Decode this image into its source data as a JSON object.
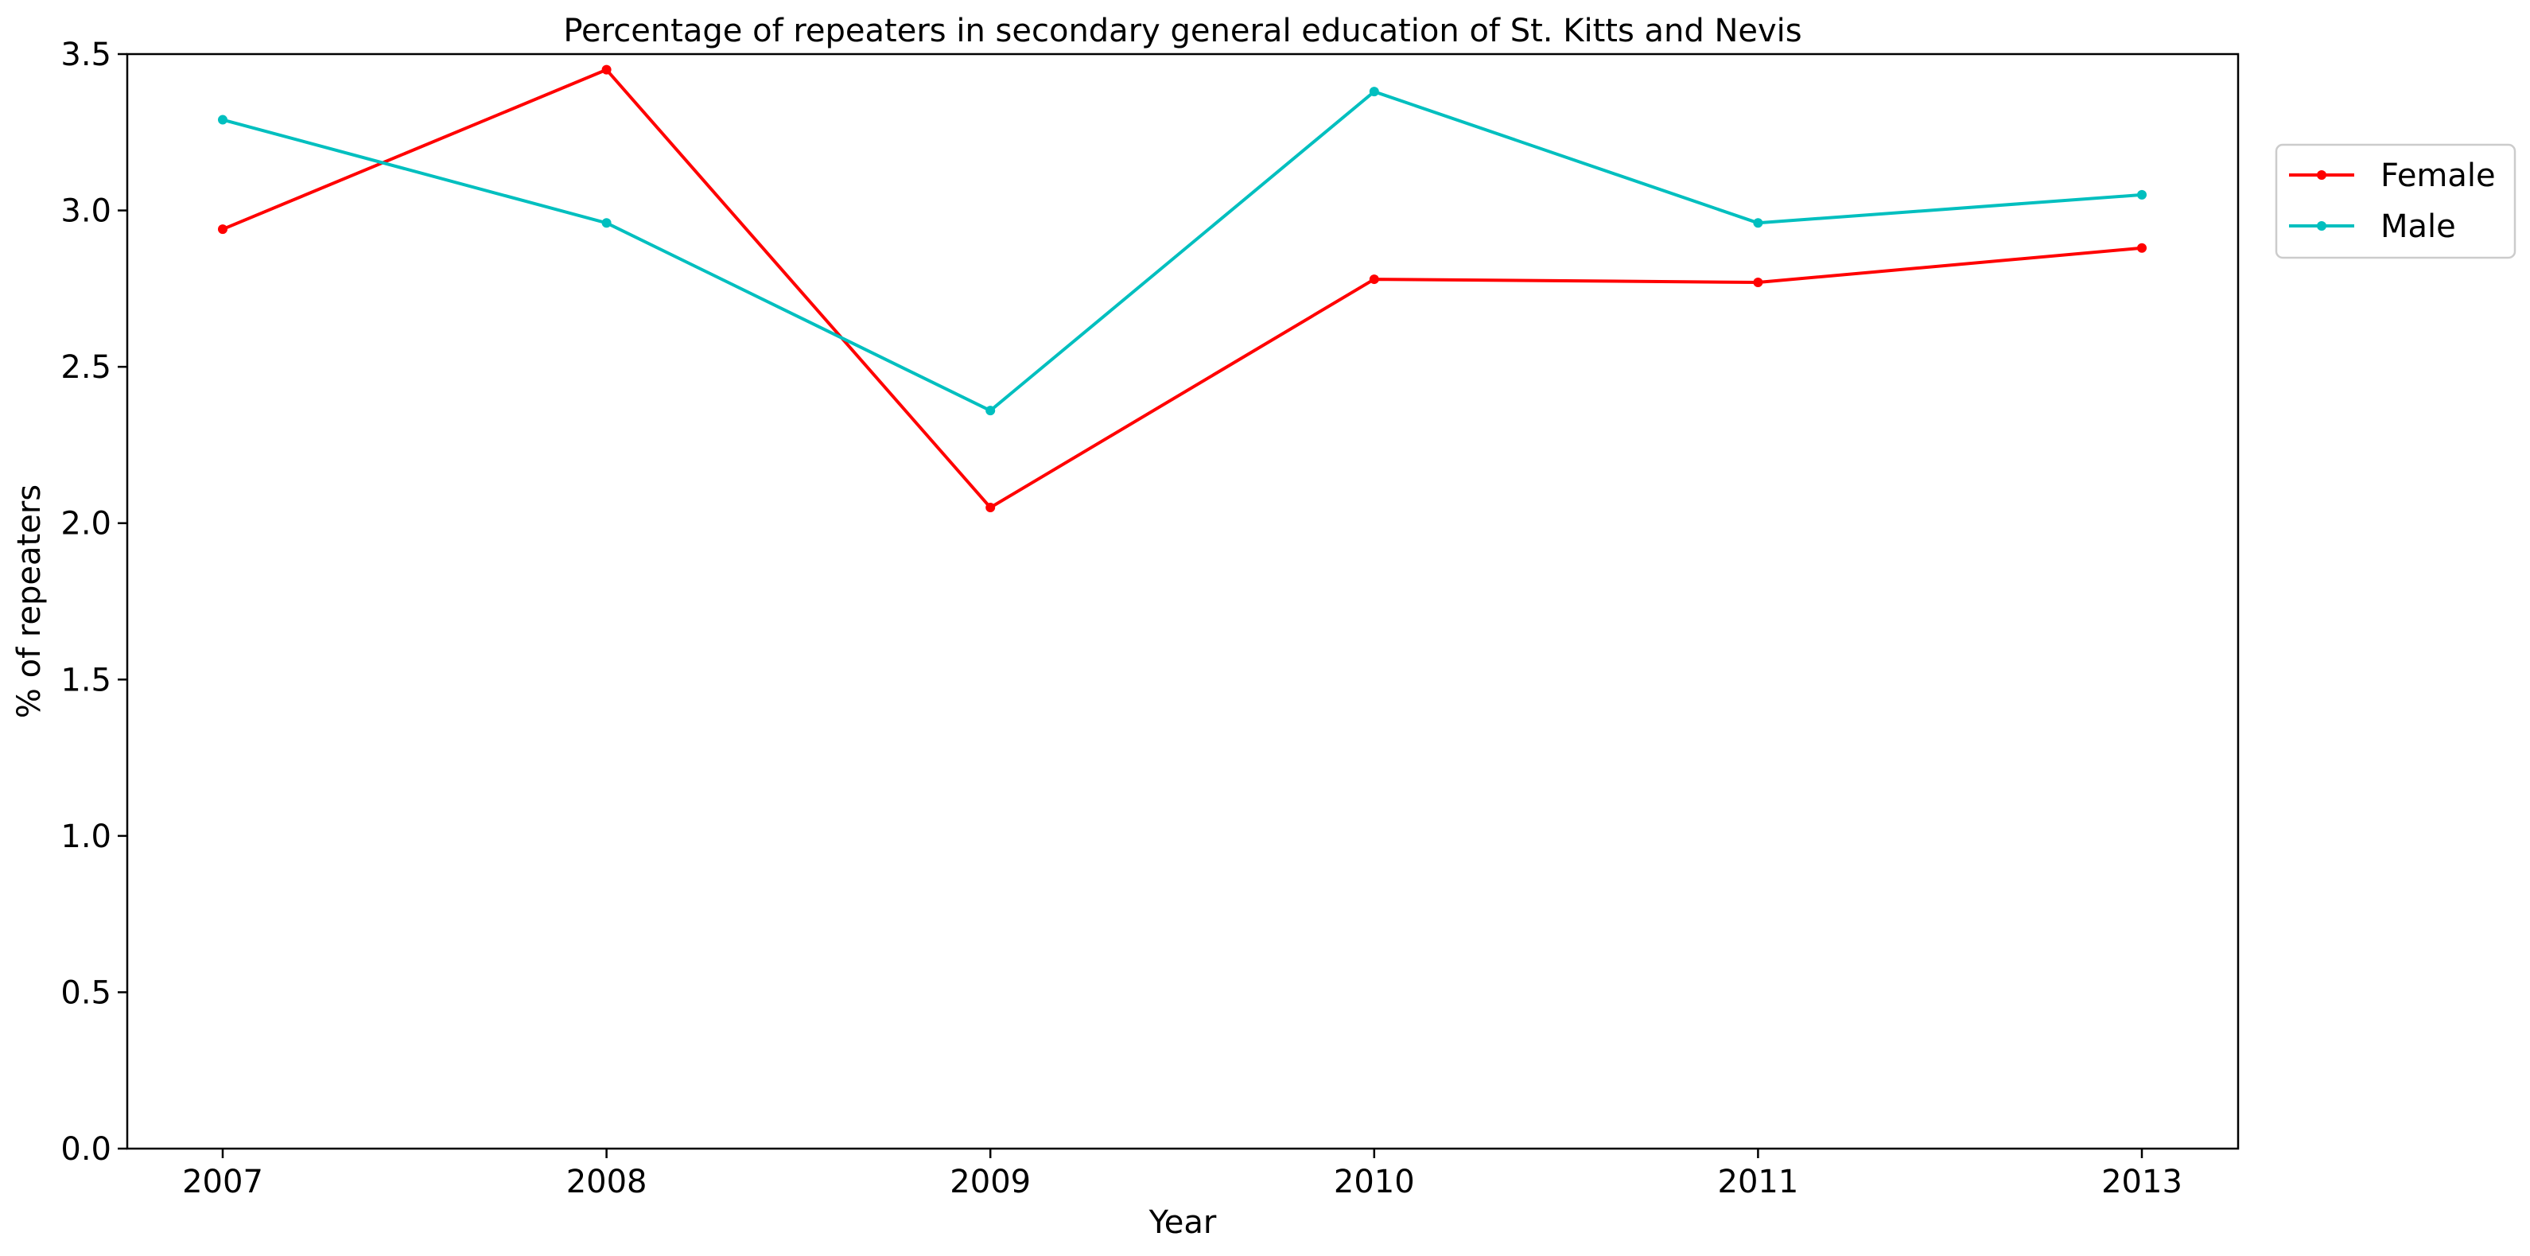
{
  "chart_data": {
    "type": "line",
    "title": "Percentage of repeaters in secondary general education of St. Kitts and Nevis",
    "xlabel": "Year",
    "ylabel": "% of repeaters",
    "categories": [
      "2007",
      "2008",
      "2009",
      "2010",
      "2011",
      "2013"
    ],
    "ylim": [
      0,
      3.5
    ],
    "yticks": [
      0.0,
      0.5,
      1.0,
      1.5,
      2.0,
      2.5,
      3.0,
      3.5
    ],
    "ytick_labels": [
      "0.0",
      "0.5",
      "1.0",
      "1.5",
      "2.0",
      "2.5",
      "3.0",
      "3.5"
    ],
    "grid": false,
    "legend_position": "outside-top-right",
    "series": [
      {
        "name": "Female",
        "color": "#ff0000",
        "values": [
          2.94,
          3.45,
          2.05,
          2.78,
          2.77,
          2.88
        ]
      },
      {
        "name": "Male",
        "color": "#00bfbf",
        "values": [
          3.29,
          2.96,
          2.36,
          3.38,
          2.96,
          3.05
        ]
      }
    ]
  }
}
